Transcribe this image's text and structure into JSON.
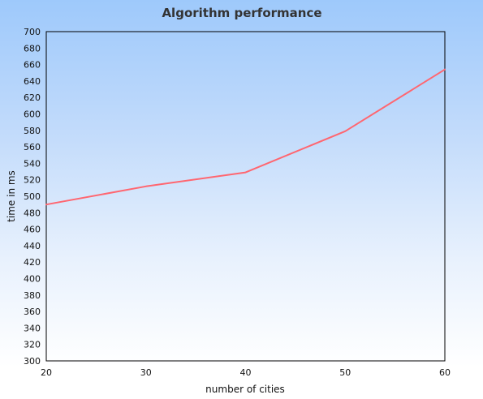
{
  "chart_data": {
    "type": "line",
    "title": "Algorithm performance",
    "xlabel": "number of cities",
    "ylabel": "time in ms",
    "x": [
      20,
      30,
      40,
      50,
      60
    ],
    "series": [
      {
        "values": [
          490,
          512,
          529,
          579,
          654
        ],
        "color": "#ff6670"
      }
    ],
    "xlim": [
      20,
      60
    ],
    "ylim": [
      300,
      700
    ],
    "xticks": [
      "20",
      "30",
      "40",
      "50",
      "60"
    ],
    "yticks": [
      "300",
      "320",
      "340",
      "360",
      "380",
      "400",
      "420",
      "440",
      "460",
      "480",
      "500",
      "520",
      "540",
      "560",
      "580",
      "600",
      "620",
      "640",
      "660",
      "680",
      "700"
    ],
    "grid": false,
    "legend": "none",
    "plot_background": "#ffffff00",
    "axis_color": "#000000"
  }
}
